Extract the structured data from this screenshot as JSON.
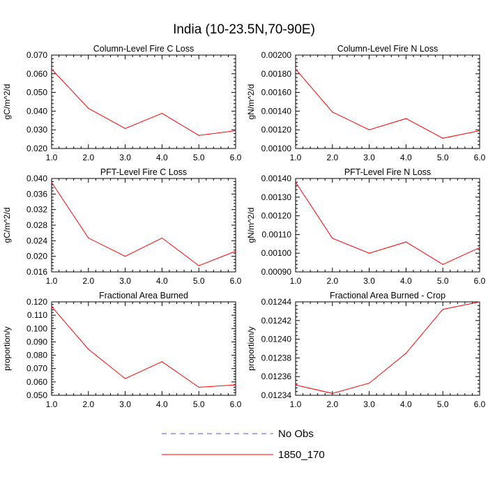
{
  "figure": {
    "title": "India (10-23.5N,70-90E)"
  },
  "legend": {
    "entries": [
      {
        "label": "No Obs",
        "color": "#5a4fcf",
        "style": "dashed"
      },
      {
        "label": "1850_170",
        "color": "#ff0000",
        "style": "solid"
      }
    ]
  },
  "chart_data": [
    {
      "type": "line",
      "title": "Column-Level Fire C Loss",
      "ylabel": "gC/m^2/d",
      "xlim": [
        1.0,
        6.0
      ],
      "ylim": [
        0.02,
        0.07
      ],
      "xticks": [
        "1.0",
        "2.0",
        "3.0",
        "4.0",
        "5.0",
        "6.0"
      ],
      "yticks": [
        "0.020",
        "0.030",
        "0.040",
        "0.050",
        "0.060",
        "0.070"
      ],
      "series": [
        {
          "name": "1850_170",
          "color": "#ff0000",
          "x": [
            1,
            2,
            3,
            4,
            5,
            6
          ],
          "values": [
            0.0625,
            0.0415,
            0.0307,
            0.0388,
            0.027,
            0.0295
          ]
        }
      ]
    },
    {
      "type": "line",
      "title": "Column-Level Fire N Loss",
      "ylabel": "gN/m^2/d",
      "xlim": [
        1.0,
        6.0
      ],
      "ylim": [
        0.001,
        0.002
      ],
      "xticks": [
        "1.0",
        "2.0",
        "3.0",
        "4.0",
        "5.0",
        "6.0"
      ],
      "yticks": [
        "0.00100",
        "0.00120",
        "0.00140",
        "0.00160",
        "0.00180",
        "0.00200"
      ],
      "series": [
        {
          "name": "1850_170",
          "color": "#ff0000",
          "x": [
            1,
            2,
            3,
            4,
            5,
            6
          ],
          "values": [
            0.00185,
            0.00139,
            0.0012,
            0.00132,
            0.00111,
            0.00119
          ]
        }
      ]
    },
    {
      "type": "line",
      "title": "PFT-Level Fire C Loss",
      "ylabel": "gC/m^2/d",
      "xlim": [
        1.0,
        6.0
      ],
      "ylim": [
        0.016,
        0.04
      ],
      "xticks": [
        "1.0",
        "2.0",
        "3.0",
        "4.0",
        "5.0",
        "6.0"
      ],
      "yticks": [
        "0.016",
        "0.020",
        "0.024",
        "0.028",
        "0.032",
        "0.036",
        "0.040"
      ],
      "series": [
        {
          "name": "1850_170",
          "color": "#ff0000",
          "x": [
            1,
            2,
            3,
            4,
            5,
            6
          ],
          "values": [
            0.039,
            0.0247,
            0.02,
            0.0247,
            0.0176,
            0.0213
          ]
        }
      ]
    },
    {
      "type": "line",
      "title": "PFT-Level Fire N Loss",
      "ylabel": "gN/m^2/d",
      "xlim": [
        1.0,
        6.0
      ],
      "ylim": [
        0.0009,
        0.0014
      ],
      "xticks": [
        "1.0",
        "2.0",
        "3.0",
        "4.0",
        "5.0",
        "6.0"
      ],
      "yticks": [
        "0.00090",
        "0.00100",
        "0.00110",
        "0.00120",
        "0.00130",
        "0.00140"
      ],
      "series": [
        {
          "name": "1850_170",
          "color": "#ff0000",
          "x": [
            1,
            2,
            3,
            4,
            5,
            6
          ],
          "values": [
            0.00138,
            0.00108,
            0.001,
            0.00106,
            0.00094,
            0.00103
          ]
        }
      ]
    },
    {
      "type": "line",
      "title": "Fractional Area Burned",
      "ylabel": "proportion/y",
      "xlim": [
        1.0,
        6.0
      ],
      "ylim": [
        0.05,
        0.12
      ],
      "xticks": [
        "1.0",
        "2.0",
        "3.0",
        "4.0",
        "5.0",
        "6.0"
      ],
      "yticks": [
        "0.050",
        "0.060",
        "0.070",
        "0.080",
        "0.090",
        "0.100",
        "0.110",
        "0.120"
      ],
      "series": [
        {
          "name": "1850_170",
          "color": "#ff0000",
          "x": [
            1,
            2,
            3,
            4,
            5,
            6
          ],
          "values": [
            0.1165,
            0.0845,
            0.0625,
            0.0752,
            0.056,
            0.0578
          ]
        }
      ]
    },
    {
      "type": "line",
      "title": "Fractional Area Burned - Crop",
      "ylabel": "proportion/y",
      "xlim": [
        1.0,
        6.0
      ],
      "ylim": [
        0.01234,
        0.01244
      ],
      "xticks": [
        "1.0",
        "2.0",
        "3.0",
        "4.0",
        "5.0",
        "6.0"
      ],
      "yticks": [
        "0.01234",
        "0.01236",
        "0.01238",
        "0.01240",
        "0.01242",
        "0.01244"
      ],
      "series": [
        {
          "name": "1850_170",
          "color": "#ff0000",
          "x": [
            1,
            2,
            3,
            4,
            5,
            6
          ],
          "values": [
            0.012351,
            0.012342,
            0.012353,
            0.012385,
            0.012432,
            0.01244
          ]
        }
      ]
    }
  ]
}
